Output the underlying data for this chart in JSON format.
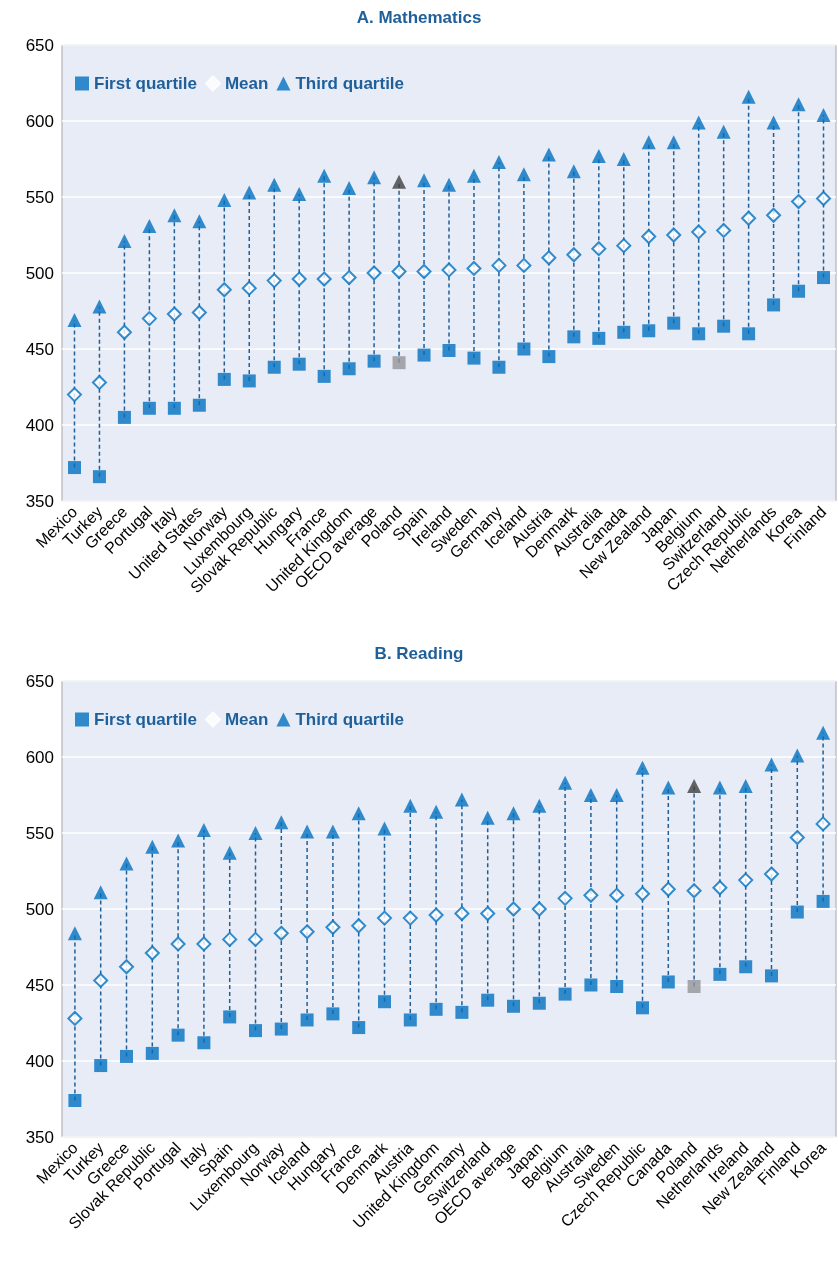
{
  "chart_data": [
    {
      "type": "scatter",
      "title": "A. Mathematics",
      "categories": [
        "Mexico",
        "Turkey",
        "Greece",
        "Portugal",
        "Italy",
        "United States",
        "Norway",
        "Luxembourg",
        "Slovak Republic",
        "Hungary",
        "France",
        "United Kingdom",
        "OECD average",
        "Poland",
        "Spain",
        "Ireland",
        "Sweden",
        "Germany",
        "Iceland",
        "Austria",
        "Denmark",
        "Australia",
        "Canada",
        "New Zealand",
        "Japan",
        "Belgium",
        "Switzerland",
        "Czech Republic",
        "Netherlands",
        "Korea",
        "Finland"
      ],
      "series": [
        {
          "name": "First quartile",
          "color": "#0070c0",
          "marker": "square",
          "colors": [
            "#0070c0",
            "#0070c0",
            "#0070c0",
            "#0070c0",
            "#0070c0",
            "#0070c0",
            "#0070c0",
            "#0070c0",
            "#0070c0",
            "#0070c0",
            "#0070c0",
            "#0070c0",
            "#0070c0",
            "#939598",
            "#0070c0",
            "#0070c0",
            "#0070c0",
            "#0070c0",
            "#0070c0",
            "#0070c0",
            "#0070c0",
            "#0070c0",
            "#0070c0",
            "#0070c0",
            "#0070c0",
            "#0070c0",
            "#0070c0",
            "#0070c0",
            "#0070c0",
            "#0070c0",
            "#0070c0"
          ],
          "values": [
            372,
            366,
            405,
            411,
            411,
            413,
            430,
            429,
            438,
            440,
            432,
            437,
            442,
            441,
            446,
            449,
            444,
            438,
            450,
            445,
            458,
            457,
            461,
            462,
            467,
            460,
            465,
            460,
            479,
            488,
            497
          ]
        },
        {
          "name": "Mean",
          "color": "#0070c0",
          "marker": "diamond",
          "values": [
            420,
            428,
            461,
            470,
            473,
            474,
            489,
            490,
            495,
            496,
            496,
            497,
            500,
            501,
            501,
            502,
            503,
            505,
            505,
            510,
            512,
            516,
            518,
            524,
            525,
            527,
            528,
            536,
            538,
            547,
            549
          ]
        },
        {
          "name": "Third quartile",
          "color": "#0070c0",
          "marker": "triangle",
          "colors": [
            "#0070c0",
            "#0070c0",
            "#0070c0",
            "#0070c0",
            "#0070c0",
            "#0070c0",
            "#0070c0",
            "#0070c0",
            "#0070c0",
            "#0070c0",
            "#0070c0",
            "#0070c0",
            "#0070c0",
            "#404040",
            "#0070c0",
            "#0070c0",
            "#0070c0",
            "#0070c0",
            "#0070c0",
            "#0070c0",
            "#0070c0",
            "#0070c0",
            "#0070c0",
            "#0070c0",
            "#0070c0",
            "#0070c0",
            "#0070c0",
            "#0070c0",
            "#0070c0",
            "#0070c0",
            "#0070c0"
          ],
          "values": [
            469,
            478,
            521,
            531,
            538,
            534,
            548,
            553,
            558,
            552,
            564,
            556,
            563,
            560,
            561,
            558,
            564,
            573,
            565,
            578,
            567,
            577,
            575,
            586,
            586,
            599,
            593,
            616,
            599,
            611,
            604
          ]
        }
      ],
      "ylim": [
        350,
        650
      ],
      "yticks": [
        350,
        400,
        450,
        500,
        550,
        600,
        650
      ],
      "grid": "y",
      "legend": "top left",
      "line_style": "dashed"
    },
    {
      "type": "scatter",
      "title": "B. Reading",
      "categories": [
        "Mexico",
        "Turkey",
        "Greece",
        "Slovak Republic",
        "Portugal",
        "Italy",
        "Spain",
        "Luxembourg",
        "Norway",
        "Iceland",
        "Hungary",
        "France",
        "Denmark",
        "Austria",
        "United Kingdom",
        "Germany",
        "Switzerland",
        "OECD average",
        "Japan",
        "Belgium",
        "Australia",
        "Sweden",
        "Czech Republic",
        "Canada",
        "Poland",
        "Netherlands",
        "Ireland",
        "New Zealand",
        "Finland",
        "Korea"
      ],
      "series": [
        {
          "name": "First quartile",
          "color": "#0070c0",
          "marker": "square",
          "colors": [
            "#0070c0",
            "#0070c0",
            "#0070c0",
            "#0070c0",
            "#0070c0",
            "#0070c0",
            "#0070c0",
            "#0070c0",
            "#0070c0",
            "#0070c0",
            "#0070c0",
            "#0070c0",
            "#0070c0",
            "#0070c0",
            "#0070c0",
            "#0070c0",
            "#0070c0",
            "#0070c0",
            "#0070c0",
            "#0070c0",
            "#0070c0",
            "#0070c0",
            "#0070c0",
            "#0070c0",
            "#939598",
            "#0070c0",
            "#0070c0",
            "#0070c0",
            "#0070c0",
            "#0070c0"
          ],
          "values": [
            374,
            397,
            403,
            405,
            417,
            412,
            429,
            420,
            421,
            427,
            431,
            422,
            439,
            427,
            434,
            432,
            440,
            436,
            438,
            444,
            450,
            449,
            435,
            452,
            449,
            457,
            462,
            456,
            498,
            505
          ]
        },
        {
          "name": "Mean",
          "color": "#0070c0",
          "marker": "diamond",
          "values": [
            428,
            453,
            462,
            471,
            477,
            477,
            480,
            480,
            484,
            485,
            488,
            489,
            494,
            494,
            496,
            497,
            497,
            500,
            500,
            507,
            509,
            509,
            510,
            513,
            512,
            514,
            519,
            523,
            547,
            556
          ]
        },
        {
          "name": "Third quartile",
          "color": "#0070c0",
          "marker": "triangle",
          "colors": [
            "#0070c0",
            "#0070c0",
            "#0070c0",
            "#0070c0",
            "#0070c0",
            "#0070c0",
            "#0070c0",
            "#0070c0",
            "#0070c0",
            "#0070c0",
            "#0070c0",
            "#0070c0",
            "#0070c0",
            "#0070c0",
            "#0070c0",
            "#0070c0",
            "#0070c0",
            "#0070c0",
            "#0070c0",
            "#0070c0",
            "#0070c0",
            "#0070c0",
            "#0070c0",
            "#0070c0",
            "#404040",
            "#0070c0",
            "#0070c0",
            "#0070c0",
            "#0070c0",
            "#0070c0"
          ],
          "values": [
            484,
            511,
            530,
            541,
            545,
            552,
            537,
            550,
            557,
            551,
            551,
            563,
            553,
            568,
            564,
            572,
            560,
            563,
            568,
            583,
            575,
            575,
            593,
            580,
            581,
            580,
            581,
            595,
            601,
            616
          ]
        }
      ],
      "ylim": [
        350,
        650
      ],
      "yticks": [
        350,
        400,
        450,
        500,
        550,
        600,
        650
      ],
      "grid": "y",
      "legend": "top left",
      "line_style": "dashed"
    }
  ]
}
